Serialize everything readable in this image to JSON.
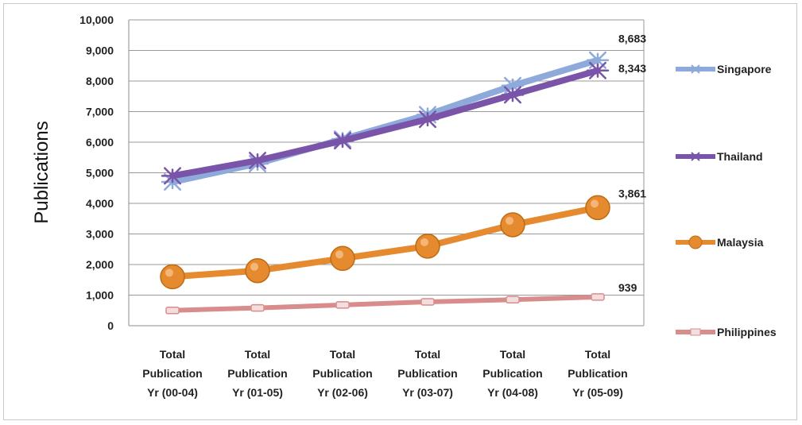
{
  "chart_data": {
    "type": "line",
    "title": "",
    "ylabel": "Publications",
    "xlabel": "",
    "ylim": [
      0,
      10000
    ],
    "yticks": [
      0,
      1000,
      2000,
      3000,
      4000,
      5000,
      6000,
      7000,
      8000,
      9000,
      10000
    ],
    "ytick_labels": [
      "0",
      "1,000",
      "2,000",
      "3,000",
      "4,000",
      "5,000",
      "6,000",
      "7,000",
      "8,000",
      "9,000",
      "10,000"
    ],
    "grid": true,
    "legend_position": "right",
    "categories": [
      [
        "Total",
        "Publication",
        "Yr (00-04)"
      ],
      [
        "Total",
        "Publication",
        "Yr (01-05)"
      ],
      [
        "Total",
        "Publication",
        "Yr (02-06)"
      ],
      [
        "Total",
        "Publication",
        "Yr (03-07)"
      ],
      [
        "Total",
        "Publication",
        "Yr (04-08)"
      ],
      [
        "Total",
        "Publication",
        "Yr (05-09)"
      ]
    ],
    "series": [
      {
        "name": "Singapore",
        "values": [
          4700,
          5300,
          6100,
          6900,
          7850,
          8683
        ],
        "color": "#8eaadb",
        "marker": "star",
        "end_label": "8,683"
      },
      {
        "name": "Thailand",
        "values": [
          4900,
          5400,
          6050,
          6750,
          7550,
          8343
        ],
        "color": "#7a54a8",
        "marker": "star",
        "end_label": "8,343"
      },
      {
        "name": "Malaysia",
        "values": [
          1600,
          1800,
          2200,
          2600,
          3300,
          3861
        ],
        "color": "#e58a2e",
        "marker": "circle",
        "end_label": "3,861"
      },
      {
        "name": "Philippines",
        "values": [
          500,
          580,
          680,
          780,
          850,
          939
        ],
        "color": "#d98c8c",
        "marker": "dash",
        "end_label": "939"
      }
    ]
  }
}
